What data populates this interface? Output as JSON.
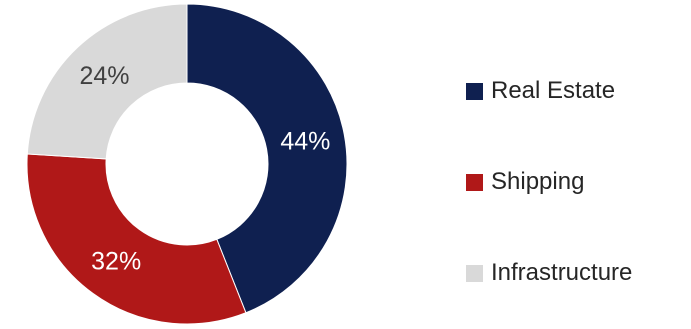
{
  "chart_data": {
    "type": "pie",
    "variant": "donut",
    "categories": [
      "Real Estate",
      "Shipping",
      "Infrastructure"
    ],
    "values": [
      44,
      32,
      24
    ],
    "labels": [
      "44%",
      "32%",
      "24%"
    ],
    "colors": [
      "#0f2050",
      "#b01818",
      "#d9d9d9"
    ],
    "label_colors": [
      "#ffffff",
      "#ffffff",
      "#404040"
    ],
    "start_angle_deg": 0,
    "direction": "clockwise",
    "legend_position": "right"
  },
  "legend": {
    "items": [
      {
        "label": "Real Estate",
        "color": "#0f2050"
      },
      {
        "label": "Shipping",
        "color": "#b01818"
      },
      {
        "label": "Infrastructure",
        "color": "#d9d9d9"
      }
    ]
  }
}
